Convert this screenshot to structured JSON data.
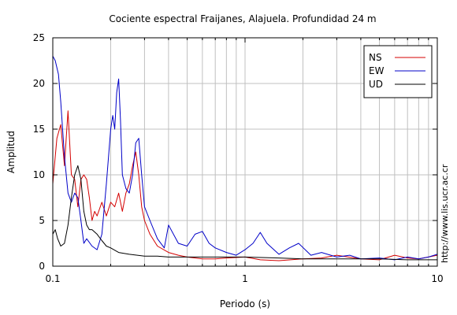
{
  "chart_data": {
    "type": "line",
    "title": "Cociente espectral Fraijanes, Alajuela. Profundidad 24 m",
    "xlabel": "Periodo (s)",
    "ylabel": "Amplitud",
    "xscale": "log",
    "xlim": [
      0.1,
      10
    ],
    "ylim": [
      0,
      25
    ],
    "grid": true,
    "legend_position": "top-right",
    "x_ticks": [
      {
        "value": 0.1,
        "label": "0.1"
      },
      {
        "value": 1,
        "label": "1"
      },
      {
        "value": 10,
        "label": "10"
      }
    ],
    "y_ticks": [
      {
        "value": 0,
        "label": "0"
      },
      {
        "value": 5,
        "label": "5"
      },
      {
        "value": 10,
        "label": "10"
      },
      {
        "value": 15,
        "label": "15"
      },
      {
        "value": 20,
        "label": "20"
      },
      {
        "value": 25,
        "label": "25"
      }
    ],
    "series": [
      {
        "name": "NS",
        "color": "#d40000",
        "x": [
          0.1,
          0.105,
          0.11,
          0.115,
          0.12,
          0.125,
          0.13,
          0.135,
          0.14,
          0.145,
          0.15,
          0.155,
          0.16,
          0.165,
          0.17,
          0.18,
          0.19,
          0.2,
          0.21,
          0.22,
          0.23,
          0.24,
          0.25,
          0.26,
          0.27,
          0.28,
          0.29,
          0.3,
          0.32,
          0.35,
          0.4,
          0.45,
          0.5,
          0.6,
          0.7,
          0.8,
          1.0,
          1.2,
          1.5,
          2.0,
          2.5,
          3.0,
          4.0,
          5.0,
          6.0,
          7.0,
          8.0,
          10.0
        ],
        "y": [
          9,
          14,
          15.5,
          11,
          17,
          10,
          9.5,
          6.5,
          9.5,
          10,
          9.5,
          7.5,
          5,
          6,
          5.5,
          7,
          5.5,
          7,
          6.5,
          8,
          6,
          8,
          9,
          11,
          12.5,
          10,
          6.5,
          5,
          3.5,
          2.2,
          1.5,
          1.2,
          1.0,
          0.8,
          0.8,
          0.9,
          1.0,
          0.7,
          0.6,
          0.8,
          0.9,
          1.2,
          0.8,
          0.7,
          1.2,
          0.9,
          0.8,
          1.2
        ]
      },
      {
        "name": "EW",
        "color": "#0000c8",
        "x": [
          0.1,
          0.103,
          0.107,
          0.11,
          0.115,
          0.12,
          0.125,
          0.13,
          0.135,
          0.14,
          0.145,
          0.15,
          0.16,
          0.17,
          0.18,
          0.19,
          0.2,
          0.205,
          0.21,
          0.215,
          0.22,
          0.225,
          0.23,
          0.24,
          0.25,
          0.26,
          0.27,
          0.28,
          0.29,
          0.3,
          0.32,
          0.35,
          0.38,
          0.4,
          0.45,
          0.5,
          0.55,
          0.6,
          0.65,
          0.7,
          0.8,
          0.9,
          1.0,
          1.1,
          1.2,
          1.3,
          1.5,
          1.7,
          1.9,
          2.2,
          2.5,
          3.0,
          3.5,
          4.0,
          5.0,
          6.0,
          7.0,
          8.0,
          9.0,
          10.0
        ],
        "y": [
          23,
          22.5,
          21,
          18,
          12,
          8,
          7,
          8,
          7.5,
          5,
          2.5,
          3,
          2.2,
          1.8,
          3.5,
          9,
          15,
          16.5,
          15,
          19,
          20.5,
          16,
          10,
          8.5,
          8,
          10,
          13.5,
          14,
          10,
          6.5,
          5,
          3,
          2,
          4.5,
          2.5,
          2.2,
          3.5,
          3.8,
          2.5,
          2.0,
          1.5,
          1.2,
          1.8,
          2.5,
          3.7,
          2.5,
          1.3,
          2.0,
          2.5,
          1.2,
          1.5,
          1.0,
          1.2,
          0.8,
          0.9,
          0.7,
          1.0,
          0.8,
          1.0,
          1.3
        ]
      },
      {
        "name": "UD",
        "color": "#000000",
        "x": [
          0.1,
          0.103,
          0.106,
          0.11,
          0.115,
          0.12,
          0.125,
          0.13,
          0.135,
          0.14,
          0.145,
          0.15,
          0.155,
          0.16,
          0.17,
          0.18,
          0.19,
          0.2,
          0.22,
          0.25,
          0.3,
          0.35,
          0.4,
          0.5,
          0.6,
          0.8,
          1.0,
          1.5,
          2.0,
          3.0,
          4.0,
          5.0,
          7.0,
          10.0
        ],
        "y": [
          3.5,
          4,
          3,
          2.2,
          2.5,
          4.5,
          7.5,
          10,
          11,
          9.5,
          6,
          4.5,
          4,
          4,
          3.5,
          2.8,
          2.2,
          2.0,
          1.5,
          1.3,
          1.1,
          1.1,
          1.0,
          1.0,
          1.0,
          1.0,
          1.0,
          0.9,
          0.8,
          0.8,
          0.8,
          0.8,
          0.7,
          0.7
        ]
      }
    ]
  },
  "side_note": "http://www.lis.ucr.ac.cr"
}
